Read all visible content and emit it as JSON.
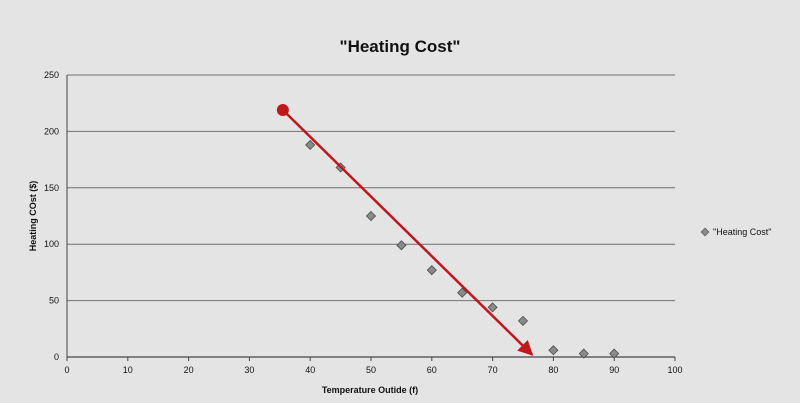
{
  "chart_data": {
    "type": "scatter",
    "title": "\"Heating Cost\"",
    "xlabel": "Temperature Outide (f)",
    "ylabel": "Heating COst ($)",
    "xlim": [
      0,
      100
    ],
    "ylim": [
      0,
      250
    ],
    "xticks": [
      0,
      10,
      20,
      30,
      40,
      50,
      60,
      70,
      80,
      90,
      100
    ],
    "yticks": [
      0,
      50,
      100,
      150,
      200,
      250
    ],
    "grid": "horizontal",
    "legend_position": "right",
    "series": [
      {
        "name": "\"Heating Cost\"",
        "marker": "diamond",
        "color": "#8a8a8a",
        "points": [
          {
            "x": 40,
            "y": 188
          },
          {
            "x": 45,
            "y": 168
          },
          {
            "x": 50,
            "y": 125
          },
          {
            "x": 55,
            "y": 99
          },
          {
            "x": 60,
            "y": 77
          },
          {
            "x": 65,
            "y": 57
          },
          {
            "x": 70,
            "y": 44
          },
          {
            "x": 75,
            "y": 32
          },
          {
            "x": 80,
            "y": 6
          },
          {
            "x": 85,
            "y": 3
          },
          {
            "x": 90,
            "y": 3
          }
        ]
      }
    ],
    "annotation": {
      "type": "arrow",
      "color": "#c0161c",
      "start": {
        "x": 35.5,
        "y": 219
      },
      "end": {
        "x": 76.5,
        "y": 2
      }
    }
  }
}
